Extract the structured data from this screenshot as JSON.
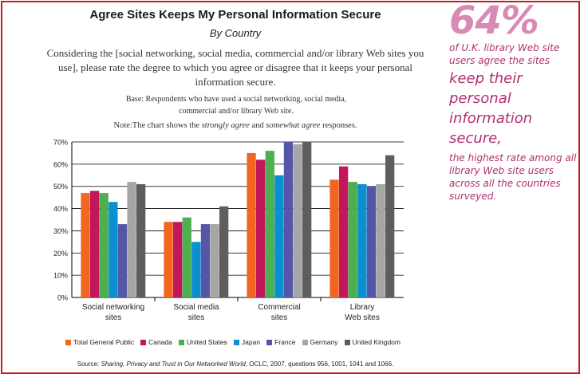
{
  "chart_data": {
    "type": "bar",
    "title": "Agree Sites Keeps My Personal Information Secure",
    "subtitle": "By Country",
    "question": "Considering the [social networking, social media, commercial and/or library Web sites you use], please rate the degree to which you agree or disagree that it keeps your personal information secure.",
    "base_note": "Base: Respondents who have used a social networking, social media, commercial and/or library Web site.",
    "note_parts": [
      "Note:The chart shows the ",
      "strongly agree",
      " and ",
      "somewhat agree",
      " responses."
    ],
    "categories": [
      [
        "Social networking",
        "sites"
      ],
      [
        "Social media",
        "sites"
      ],
      [
        "Commercial",
        "sites"
      ],
      [
        "Library",
        "Web sites"
      ]
    ],
    "y_ticks": [
      "0%",
      "10%",
      "20%",
      "30%",
      "40%",
      "50%",
      "60%",
      "70%"
    ],
    "ylim": [
      0,
      70
    ],
    "series": [
      {
        "name": "Total General Public",
        "color": "#f26522",
        "values": [
          47,
          34,
          65,
          53
        ]
      },
      {
        "name": "Canada",
        "color": "#c2185b",
        "values": [
          48,
          34,
          62,
          59
        ]
      },
      {
        "name": "United States",
        "color": "#4caf50",
        "values": [
          47,
          36,
          66,
          52
        ]
      },
      {
        "name": "Japan",
        "color": "#0b8fd0",
        "values": [
          43,
          25,
          55,
          51
        ]
      },
      {
        "name": "France",
        "color": "#5456a8",
        "values": [
          33,
          33,
          70,
          50
        ]
      },
      {
        "name": "Germany",
        "color": "#a6a6a6",
        "values": [
          52,
          33,
          69,
          51
        ]
      },
      {
        "name": "United Kingdom",
        "color": "#5e5e5e",
        "values": [
          51,
          41,
          70,
          64
        ]
      }
    ],
    "source_parts": [
      "Source: ",
      "Sharing, Privacy and Trust in Our Networked World",
      ", OCLC, 2007, questions 956, 1001, 1041 and 1066."
    ]
  },
  "callout": {
    "stat": "64%",
    "line1": "of U.K. library Web site users agree the sites",
    "line2": "keep their personal information secure,",
    "line3": "the highest rate among all library Web site users across all the countries surveyed."
  },
  "colors": {
    "border": "#c41e24",
    "callout": "#b0306f",
    "stat": "#d98ab4"
  }
}
